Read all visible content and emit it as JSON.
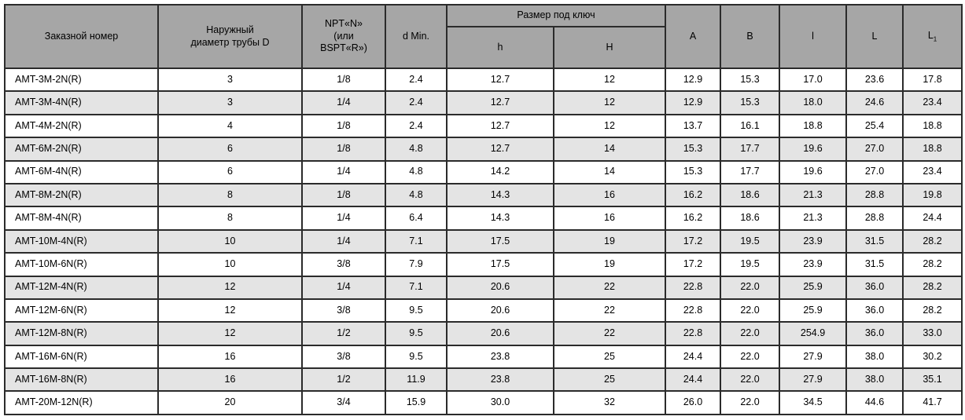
{
  "colors": {
    "header_bg": "#a6a6a6",
    "stripe_bg": "#e4e4e4",
    "row_bg": "#ffffff",
    "border": "#2b2b2b",
    "text": "#000000"
  },
  "table": {
    "headers": {
      "order_number": "Заказной номер",
      "outer_diameter_line1": "Наружный",
      "outer_diameter_line2": "диаметр трубы D",
      "npt_line1": "NPT«N»",
      "npt_line2": "(или",
      "npt_line3": "BSPT«R»)",
      "d_min": "d Min.",
      "wrench_size": "Размер под ключ",
      "h_small": "h",
      "h_large": "H",
      "A": "A",
      "B": "B",
      "l_small": "l",
      "L_large": "L",
      "L1_base": "L",
      "L1_sub": "1"
    },
    "rows": [
      [
        "AMT-3M-2N(R)",
        "3",
        "1/8",
        "2.4",
        "12.7",
        "12",
        "12.9",
        "15.3",
        "17.0",
        "23.6",
        "17.8"
      ],
      [
        "AMT-3M-4N(R)",
        "3",
        "1/4",
        "2.4",
        "12.7",
        "12",
        "12.9",
        "15.3",
        "18.0",
        "24.6",
        "23.4"
      ],
      [
        "AMT-4M-2N(R)",
        "4",
        "1/8",
        "2.4",
        "12.7",
        "12",
        "13.7",
        "16.1",
        "18.8",
        "25.4",
        "18.8"
      ],
      [
        "AMT-6M-2N(R)",
        "6",
        "1/8",
        "4.8",
        "12.7",
        "14",
        "15.3",
        "17.7",
        "19.6",
        "27.0",
        "18.8"
      ],
      [
        "AMT-6M-4N(R)",
        "6",
        "1/4",
        "4.8",
        "14.2",
        "14",
        "15.3",
        "17.7",
        "19.6",
        "27.0",
        "23.4"
      ],
      [
        "AMT-8M-2N(R)",
        "8",
        "1/8",
        "4.8",
        "14.3",
        "16",
        "16.2",
        "18.6",
        "21.3",
        "28.8",
        "19.8"
      ],
      [
        "AMT-8M-4N(R)",
        "8",
        "1/4",
        "6.4",
        "14.3",
        "16",
        "16.2",
        "18.6",
        "21.3",
        "28.8",
        "24.4"
      ],
      [
        "AMT-10M-4N(R)",
        "10",
        "1/4",
        "7.1",
        "17.5",
        "19",
        "17.2",
        "19.5",
        "23.9",
        "31.5",
        "28.2"
      ],
      [
        "AMT-10M-6N(R)",
        "10",
        "3/8",
        "7.9",
        "17.5",
        "19",
        "17.2",
        "19.5",
        "23.9",
        "31.5",
        "28.2"
      ],
      [
        "AMT-12M-4N(R)",
        "12",
        "1/4",
        "7.1",
        "20.6",
        "22",
        "22.8",
        "22.0",
        "25.9",
        "36.0",
        "28.2"
      ],
      [
        "AMT-12M-6N(R)",
        "12",
        "3/8",
        "9.5",
        "20.6",
        "22",
        "22.8",
        "22.0",
        "25.9",
        "36.0",
        "28.2"
      ],
      [
        "AMT-12M-8N(R)",
        "12",
        "1/2",
        "9.5",
        "20.6",
        "22",
        "22.8",
        "22.0",
        "254.9",
        "36.0",
        "33.0"
      ],
      [
        "AMT-16M-6N(R)",
        "16",
        "3/8",
        "9.5",
        "23.8",
        "25",
        "24.4",
        "22.0",
        "27.9",
        "38.0",
        "30.2"
      ],
      [
        "AMT-16M-8N(R)",
        "16",
        "1/2",
        "11.9",
        "23.8",
        "25",
        "24.4",
        "22.0",
        "27.9",
        "38.0",
        "35.1"
      ],
      [
        "AMT-20M-12N(R)",
        "20",
        "3/4",
        "15.9",
        "30.0",
        "32",
        "26.0",
        "22.0",
        "34.5",
        "44.6",
        "41.7"
      ]
    ]
  }
}
